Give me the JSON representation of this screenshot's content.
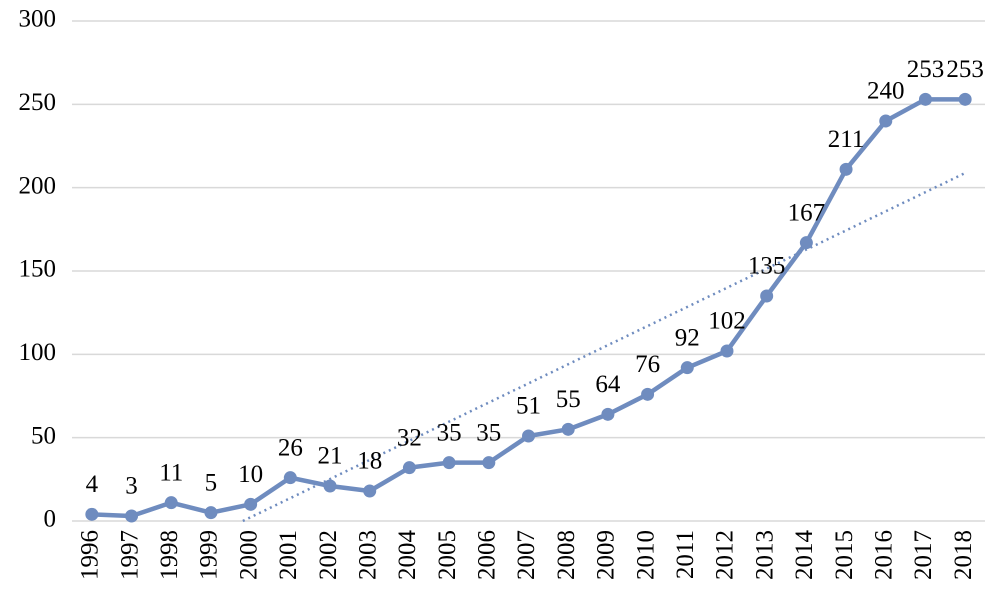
{
  "chart_data": {
    "type": "line",
    "categories": [
      "1996",
      "1997",
      "1998",
      "1999",
      "2000",
      "2001",
      "2002",
      "2003",
      "2004",
      "2005",
      "2006",
      "2007",
      "2008",
      "2009",
      "2010",
      "2011",
      "2012",
      "2013",
      "2014",
      "2015",
      "2016",
      "2017",
      "2018"
    ],
    "values": [
      4,
      3,
      11,
      5,
      10,
      26,
      21,
      18,
      32,
      35,
      35,
      51,
      55,
      64,
      76,
      92,
      102,
      135,
      167,
      211,
      240,
      253,
      253
    ],
    "color": "#6f8cbf",
    "ylim": [
      0,
      300
    ],
    "yticks": [
      0,
      50,
      100,
      150,
      200,
      250,
      300
    ],
    "grid": true,
    "trendline": "linear",
    "data_labels": true
  }
}
